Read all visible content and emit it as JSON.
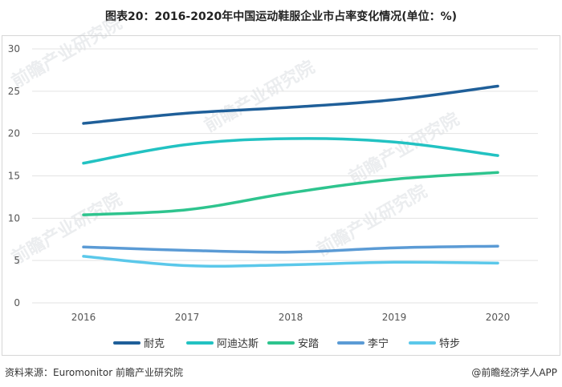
{
  "chart_data": {
    "type": "line",
    "title": "图表20：2016-2020年中国运动鞋服企业市占率变化情况(单位：%)",
    "categories": [
      "2016",
      "2017",
      "2018",
      "2019",
      "2020"
    ],
    "ylim": [
      0,
      30
    ],
    "yticks": [
      0,
      5,
      10,
      15,
      20,
      25,
      30
    ],
    "grid": true,
    "legend_position": "bottom",
    "series": [
      {
        "name": "耐克",
        "color": "#1f5f99",
        "values": [
          21.2,
          22.4,
          23.1,
          24.0,
          25.6
        ]
      },
      {
        "name": "阿迪达斯",
        "color": "#22c2c2",
        "values": [
          16.5,
          18.7,
          19.4,
          19.0,
          17.4
        ]
      },
      {
        "name": "安踏",
        "color": "#2ec48e",
        "values": [
          10.4,
          11.0,
          13.0,
          14.6,
          15.4
        ]
      },
      {
        "name": "李宁",
        "color": "#5b9bd5",
        "values": [
          6.6,
          6.2,
          6.0,
          6.5,
          6.7
        ]
      },
      {
        "name": "特步",
        "color": "#5bc8ea",
        "values": [
          5.5,
          4.4,
          4.5,
          4.8,
          4.7
        ]
      }
    ]
  },
  "footer": {
    "source": "资料来源：Euromonitor 前瞻产业研究院",
    "brand": "@前瞻经济学人APP"
  },
  "watermark": {
    "text": "前瞻产业研究院"
  }
}
